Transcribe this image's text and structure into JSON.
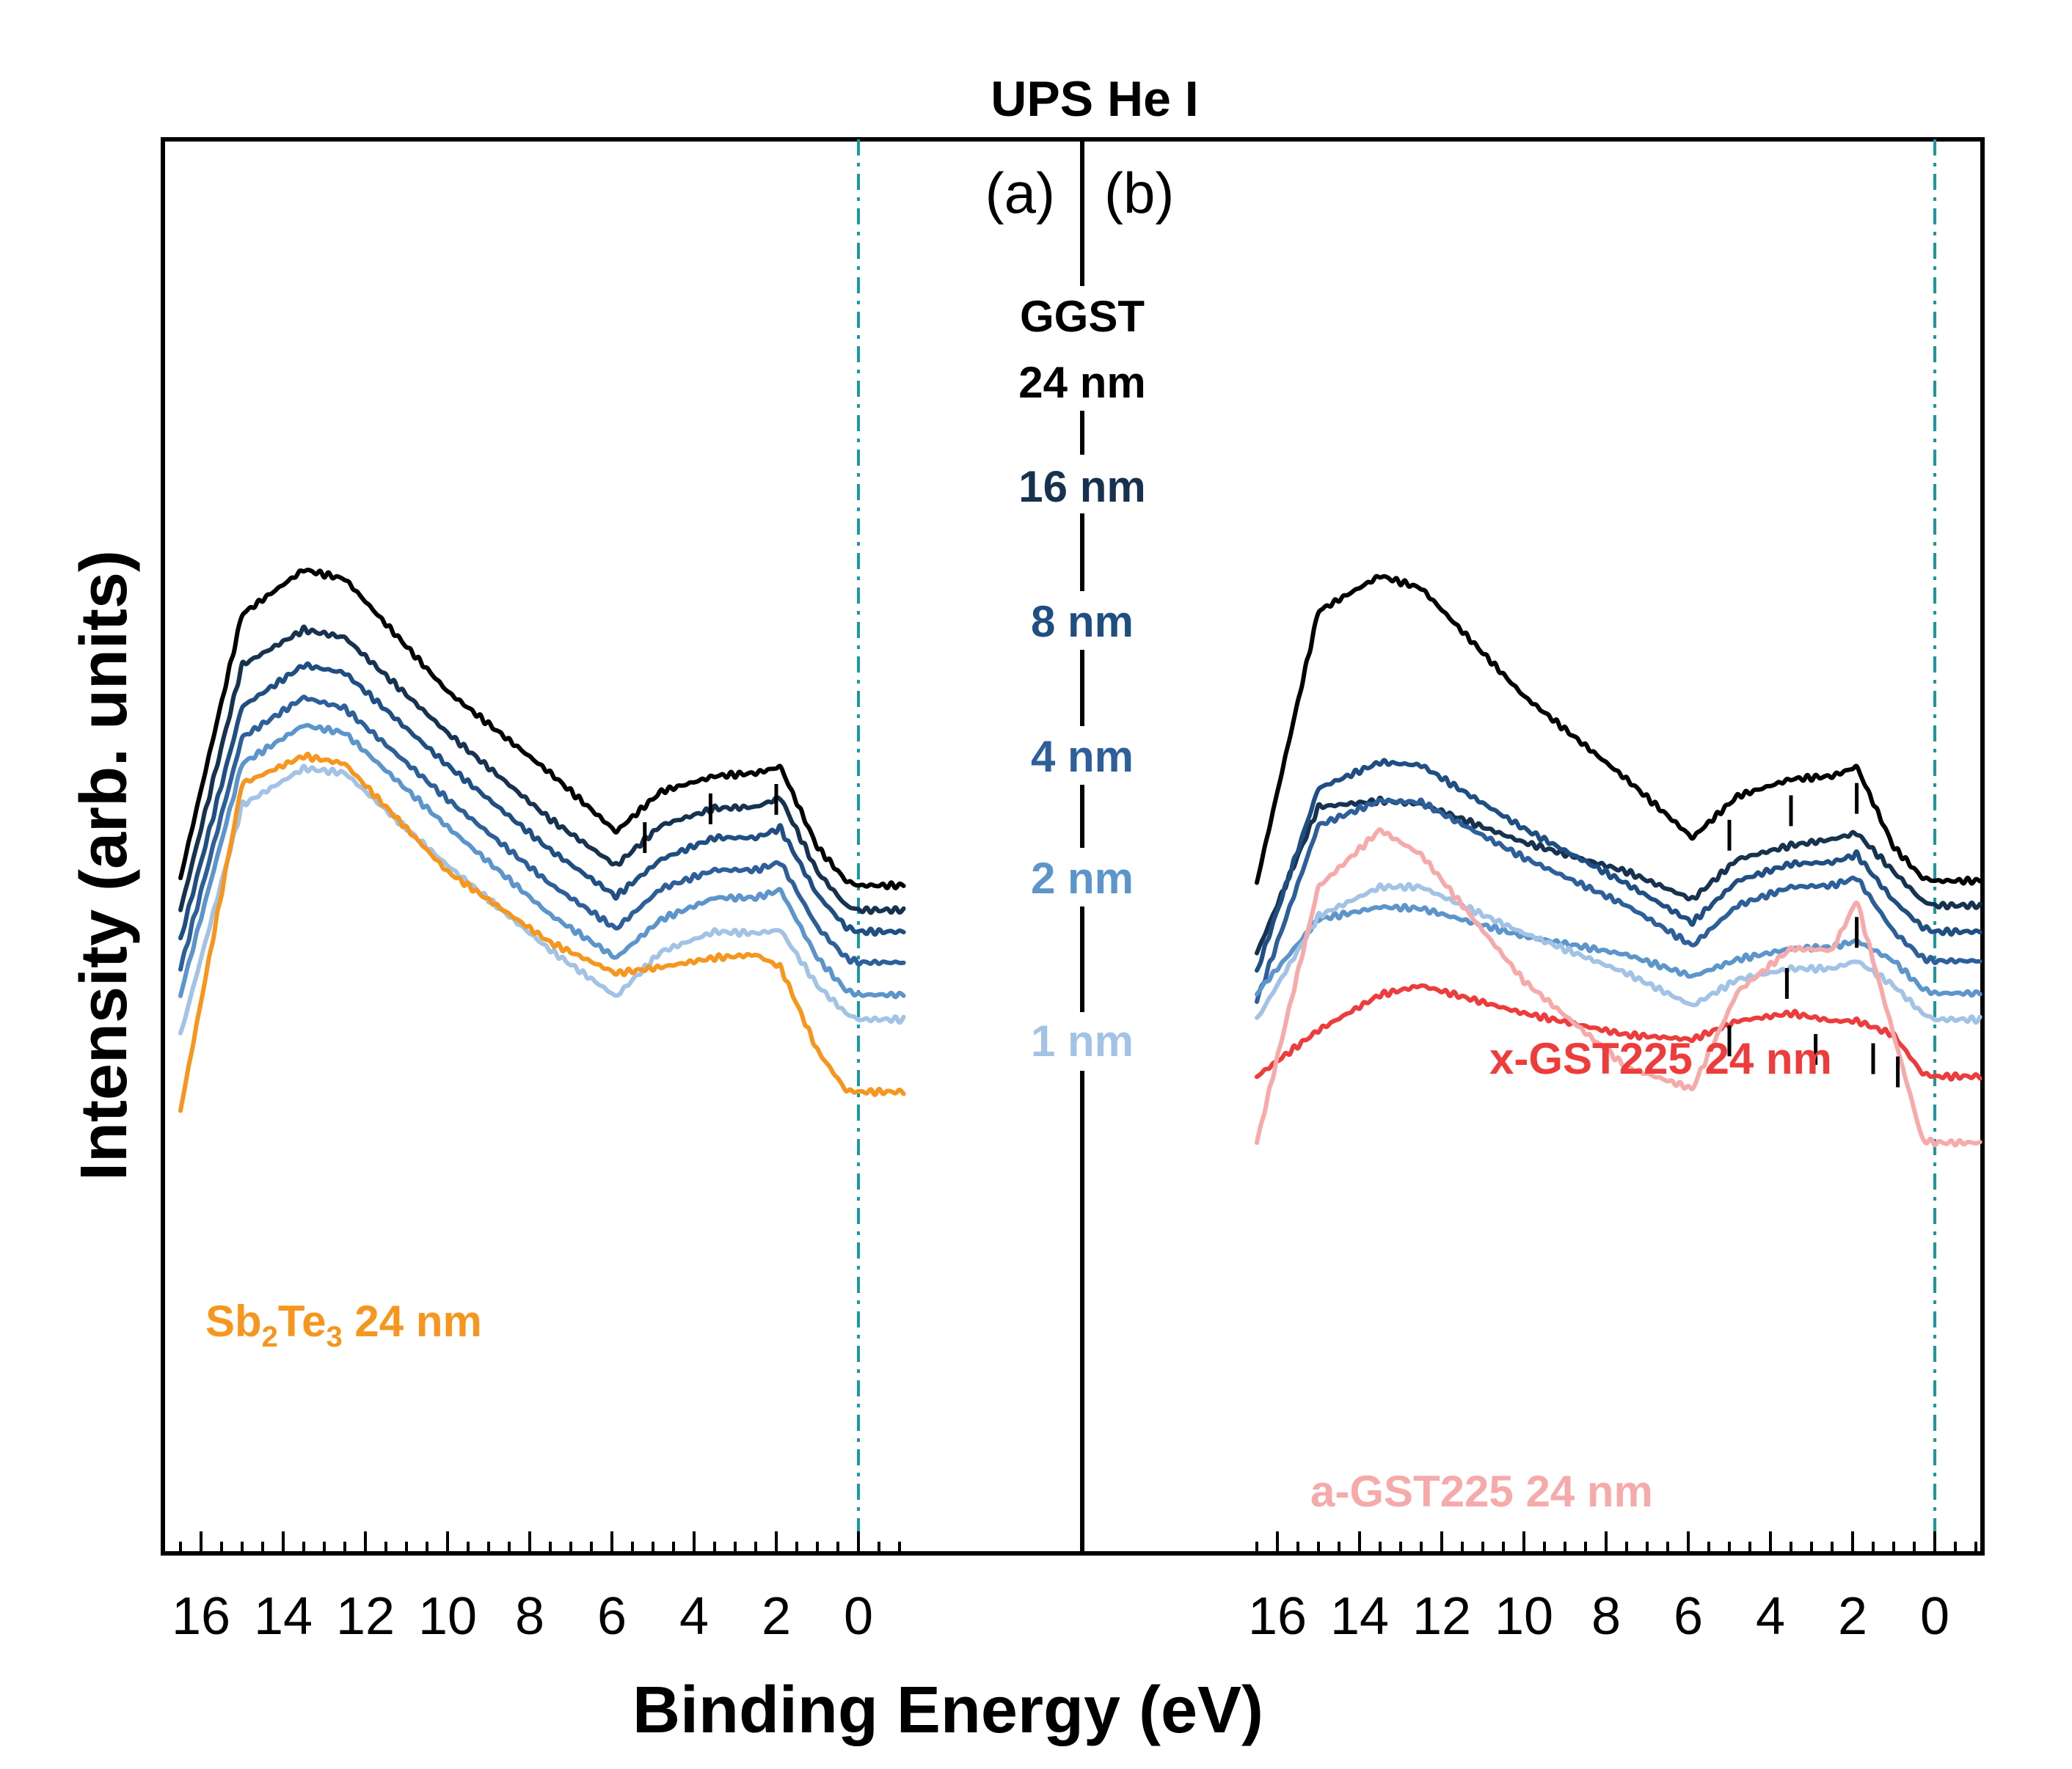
{
  "chart_data": {
    "type": "line",
    "title": "UPS He I",
    "xlabel": "Binding Energy (eV)",
    "ylabel": "Intensity (arb. units)",
    "xlim": [
      16.7,
      -1.2
    ],
    "x_reversed": true,
    "xticks": [
      "16",
      "14",
      "12",
      "10",
      "8",
      "6",
      "4",
      "2",
      "0"
    ],
    "fermi_level_ev": 0,
    "x_anchor_ev": [
      -1.1,
      0,
      0.3,
      1.0,
      1.9,
      2.5,
      3.5,
      4.8,
      5.9,
      7.5,
      10,
      12.5,
      13.5,
      15,
      16.5
    ],
    "panels": [
      {
        "label": "(a)",
        "series": [
          {
            "name": "GGST 24 nm",
            "color": "#000000",
            "y": [
              0.87,
              0.87,
              0.9,
              1.12,
              1.64,
              1.6,
              1.58,
              1.48,
              1.22,
              1.6,
              2.13,
              2.86,
              2.92,
              2.63,
              0.92
            ],
            "markers_ev": [
              5.2,
              3.6,
              2.0
            ]
          },
          {
            "name": "16 nm",
            "color": "#16324f",
            "y": [
              0.71,
              0.71,
              0.74,
              0.96,
              1.44,
              1.38,
              1.37,
              1.26,
              1.0,
              1.3,
              1.86,
              2.48,
              2.53,
              2.3,
              0.71
            ]
          },
          {
            "name": "8 nm",
            "color": "#1e4e82",
            "y": [
              0.57,
              0.57,
              0.6,
              0.81,
              1.24,
              1.18,
              1.18,
              1.04,
              0.8,
              1.1,
              1.65,
              2.25,
              2.3,
              2.03,
              0.52
            ]
          },
          {
            "name": "4 nm",
            "color": "#2d5f9a",
            "y": [
              0.37,
              0.37,
              0.4,
              0.6,
              1.02,
              0.97,
              0.97,
              0.85,
              0.59,
              0.88,
              1.43,
              2.02,
              2.09,
              1.83,
              0.33
            ]
          },
          {
            "name": "2 nm",
            "color": "#5b95cc",
            "y": [
              0.16,
              0.16,
              0.19,
              0.4,
              0.84,
              0.79,
              0.79,
              0.65,
              0.4,
              0.68,
              1.25,
              1.86,
              1.91,
              1.66,
              0.16
            ]
          },
          {
            "name": "1 nm",
            "color": "#a3c3e6",
            "y": [
              0.0,
              0.0,
              0.04,
              0.22,
              0.58,
              0.56,
              0.57,
              0.44,
              0.15,
              0.45,
              1.0,
              1.6,
              1.63,
              1.39,
              -0.1
            ]
          },
          {
            "name": "Sb2Te3 24 nm",
            "color": "#f7961e",
            "y": [
              -0.47,
              -0.47,
              -0.46,
              -0.2,
              0.34,
              0.42,
              0.4,
              0.34,
              0.3,
              0.5,
              0.96,
              1.66,
              1.71,
              1.53,
              -0.59
            ]
          }
        ]
      },
      {
        "label": "(b)",
        "series": [
          {
            "name": "GGST 24 nm",
            "color": "#000000",
            "y": [
              0.9,
              0.9,
              0.92,
              1.12,
              1.64,
              1.58,
              1.56,
              1.45,
              1.18,
              1.56,
              2.1,
              2.8,
              2.88,
              2.65,
              0.89
            ],
            "markers_ev": [
              5.0,
              3.5,
              1.9
            ]
          },
          {
            "name": "16 nm",
            "color": "#16324f",
            "y": [
              0.74,
              0.74,
              0.77,
              0.96,
              1.21,
              1.17,
              1.13,
              1.04,
              0.78,
              0.96,
              1.15,
              1.4,
              1.42,
              1.38,
              0.43
            ]
          },
          {
            "name": "8 nm",
            "color": "#1e4e82",
            "y": [
              0.57,
              0.57,
              0.6,
              0.77,
              1.07,
              1.02,
              1.01,
              0.9,
              0.63,
              0.88,
              1.24,
              1.65,
              1.67,
              1.5,
              0.31
            ]
          },
          {
            "name": "4 nm",
            "color": "#2d5f9a",
            "y": [
              0.38,
              0.38,
              0.4,
              0.57,
              0.92,
              0.87,
              0.86,
              0.74,
              0.48,
              0.74,
              1.05,
              1.41,
              1.42,
              1.26,
              0.12
            ]
          },
          {
            "name": "2 nm",
            "color": "#5b95cc",
            "y": [
              0.17,
              0.17,
              0.2,
              0.38,
              0.51,
              0.47,
              0.46,
              0.39,
              0.28,
              0.42,
              0.54,
              0.72,
              0.73,
              0.65,
              0.17
            ]
          },
          {
            "name": "1 nm",
            "color": "#a3c3e6",
            "y": [
              0.0,
              0.0,
              0.04,
              0.22,
              0.38,
              0.33,
              0.33,
              0.26,
              0.09,
              0.3,
              0.56,
              0.86,
              0.86,
              0.67,
              0.0
            ]
          },
          {
            "name": "x-GST225 24 nm",
            "color": "#ee3b3b",
            "y": [
              -0.37,
              -0.37,
              -0.35,
              -0.1,
              -0.01,
              -0.01,
              0.04,
              -0.01,
              -0.13,
              -0.1,
              0.04,
              0.22,
              0.16,
              -0.07,
              -0.37
            ],
            "markers_ev": [
              2.9,
              1.5,
              0.9
            ]
          },
          {
            "name": "a-GST225 24 nm",
            "color": "#f7aaaa",
            "y": [
              -0.8,
              -0.8,
              -0.78,
              -0.1,
              0.77,
              0.45,
              0.46,
              0.18,
              -0.45,
              -0.31,
              0.25,
              1.07,
              1.23,
              0.86,
              -0.8
            ],
            "markers_ev": [
              5.0,
              3.6,
              1.9
            ]
          }
        ]
      }
    ],
    "labels": {
      "ggst_line1": "GGST",
      "ggst_line2": "24 nm",
      "t16": "16 nm",
      "t8": "8 nm",
      "t4": "4 nm",
      "t2": "2 nm",
      "t1": "1 nm",
      "sb_main": "Sb",
      "sb_sub1": "2",
      "sb_mid": "Te",
      "sb_sub2": "3",
      "sb_tail": " 24 nm",
      "xgst": "x-GST225 24 nm",
      "agst": "a-GST225 24 nm"
    }
  }
}
